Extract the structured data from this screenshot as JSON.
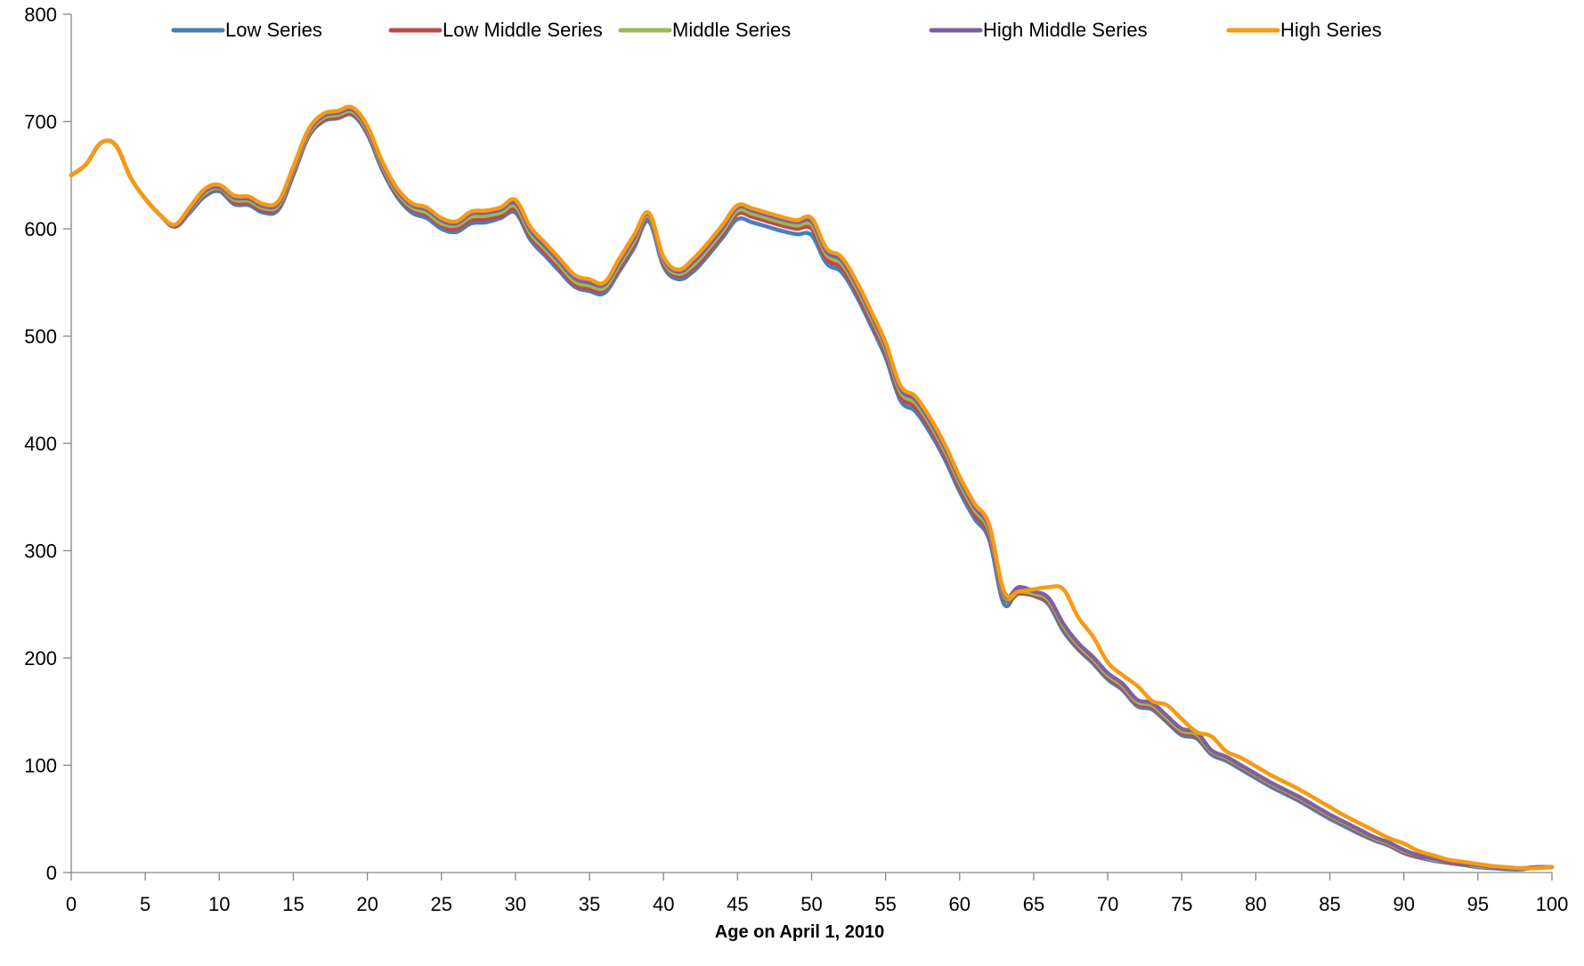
{
  "chart_data": {
    "type": "line",
    "title": "",
    "xlabel": "Age on April 1, 2010",
    "ylabel": "",
    "xlim": [
      0,
      100
    ],
    "ylim": [
      0,
      800
    ],
    "x_ticks": [
      0,
      5,
      10,
      15,
      20,
      25,
      30,
      35,
      40,
      45,
      50,
      55,
      60,
      65,
      70,
      75,
      80,
      85,
      90,
      95,
      100
    ],
    "y_ticks": [
      0,
      100,
      200,
      300,
      400,
      500,
      600,
      700,
      800
    ],
    "grid": false,
    "legend_position": "top",
    "x": [
      0,
      1,
      2,
      3,
      4,
      5,
      6,
      7,
      8,
      9,
      10,
      11,
      12,
      13,
      14,
      15,
      16,
      17,
      18,
      19,
      20,
      21,
      22,
      23,
      24,
      25,
      26,
      27,
      28,
      29,
      30,
      31,
      32,
      33,
      34,
      35,
      36,
      37,
      38,
      39,
      40,
      41,
      42,
      43,
      44,
      45,
      46,
      47,
      48,
      49,
      50,
      51,
      52,
      53,
      54,
      55,
      56,
      57,
      58,
      59,
      60,
      61,
      62,
      63,
      64,
      65,
      66,
      67,
      68,
      69,
      70,
      71,
      72,
      73,
      74,
      75,
      76,
      77,
      78,
      79,
      80,
      81,
      82,
      83,
      84,
      85,
      86,
      87,
      88,
      89,
      90,
      91,
      92,
      93,
      94,
      95,
      96,
      97,
      98,
      99,
      100
    ],
    "series": [
      {
        "name": "Low Series",
        "color": "#4a7ebb",
        "values": [
          650,
          660,
          680,
          678,
          648,
          628,
          613,
          602,
          615,
          630,
          635,
          623,
          622,
          615,
          618,
          650,
          685,
          700,
          703,
          706,
          688,
          655,
          630,
          615,
          610,
          600,
          597,
          605,
          606,
          610,
          615,
          590,
          575,
          560,
          546,
          542,
          540,
          560,
          582,
          607,
          565,
          553,
          560,
          575,
          592,
          609,
          606,
          602,
          598,
          595,
          594,
          568,
          560,
          538,
          510,
          480,
          440,
          430,
          410,
          385,
          355,
          330,
          310,
          250,
          265,
          258,
          250,
          225,
          208,
          195,
          180,
          170,
          155,
          152,
          140,
          128,
          125,
          110,
          104,
          96,
          88,
          80,
          73,
          66,
          58,
          50,
          43,
          36,
          30,
          25,
          18,
          14,
          11,
          9,
          7,
          5,
          4,
          3,
          3,
          5,
          5
        ]
      },
      {
        "name": "Low Middle Series",
        "color": "#be4b48",
        "values": [
          650,
          660,
          680,
          678,
          648,
          628,
          613,
          602,
          616,
          632,
          637,
          625,
          624,
          617,
          620,
          652,
          686,
          701,
          704,
          707,
          690,
          657,
          632,
          618,
          613,
          603,
          600,
          608,
          609,
          612,
          618,
          593,
          578,
          563,
          548,
          544,
          543,
          563,
          585,
          610,
          568,
          556,
          563,
          578,
          595,
          614,
          611,
          607,
          603,
          600,
          600,
          572,
          564,
          542,
          514,
          484,
          444,
          434,
          414,
          389,
          359,
          334,
          314,
          256,
          260,
          258,
          252,
          228,
          210,
          197,
          182,
          172,
          157,
          154,
          142,
          130,
          127,
          112,
          106,
          98,
          90,
          82,
          75,
          68,
          60,
          52,
          45,
          38,
          31,
          26,
          19,
          15,
          12,
          9,
          8,
          6,
          5,
          4,
          4,
          5,
          5
        ]
      },
      {
        "name": "Middle Series",
        "color": "#98b954",
        "values": [
          650,
          660,
          680,
          678,
          648,
          628,
          613,
          603,
          617,
          633,
          638,
          627,
          626,
          619,
          622,
          654,
          688,
          703,
          706,
          709,
          692,
          659,
          634,
          620,
          615,
          605,
          603,
          611,
          612,
          615,
          621,
          596,
          581,
          566,
          551,
          547,
          545,
          566,
          588,
          612,
          570,
          558,
          566,
          581,
          598,
          617,
          614,
          610,
          606,
          603,
          604,
          576,
          568,
          546,
          518,
          488,
          448,
          438,
          418,
          393,
          363,
          338,
          318,
          258,
          262,
          260,
          254,
          230,
          212,
          199,
          184,
          174,
          159,
          156,
          144,
          132,
          129,
          113,
          107,
          99,
          91,
          83,
          76,
          69,
          61,
          53,
          46,
          39,
          32,
          27,
          20,
          16,
          12,
          10,
          8,
          6,
          5,
          4,
          4,
          5,
          5
        ]
      },
      {
        "name": "High Middle Series",
        "color": "#7d60a0",
        "values": [
          650,
          660,
          680,
          678,
          648,
          628,
          613,
          603,
          618,
          635,
          639,
          629,
          628,
          621,
          624,
          656,
          690,
          705,
          708,
          711,
          694,
          661,
          636,
          622,
          618,
          608,
          605,
          614,
          615,
          618,
          624,
          599,
          584,
          569,
          554,
          550,
          548,
          569,
          591,
          614,
          572,
          560,
          569,
          584,
          601,
          620,
          617,
          613,
          609,
          606,
          607,
          579,
          571,
          549,
          521,
          491,
          451,
          441,
          421,
          396,
          366,
          341,
          321,
          260,
          266,
          262,
          256,
          232,
          214,
          201,
          186,
          176,
          161,
          158,
          146,
          134,
          131,
          114,
          108,
          100,
          92,
          84,
          77,
          70,
          62,
          54,
          47,
          40,
          33,
          28,
          21,
          16,
          13,
          10,
          8,
          7,
          5,
          4,
          4,
          5,
          5
        ]
      },
      {
        "name": "High Series",
        "color": "#f79a14",
        "values": [
          650,
          660,
          680,
          678,
          648,
          628,
          613,
          604,
          620,
          637,
          641,
          631,
          630,
          623,
          626,
          658,
          692,
          707,
          710,
          713,
          696,
          663,
          638,
          624,
          620,
          610,
          607,
          616,
          617,
          620,
          627,
          602,
          587,
          572,
          557,
          553,
          550,
          572,
          594,
          615,
          574,
          562,
          572,
          587,
          604,
          622,
          619,
          615,
          611,
          608,
          610,
          582,
          574,
          552,
          524,
          494,
          454,
          444,
          424,
          399,
          369,
          344,
          324,
          262,
          262,
          264,
          266,
          264,
          238,
          220,
          196,
          184,
          174,
          160,
          156,
          143,
          131,
          127,
          113,
          107,
          99,
          91,
          84,
          77,
          69,
          61,
          53,
          46,
          39,
          32,
          27,
          20,
          16,
          12,
          10,
          8,
          6,
          5,
          4,
          4,
          5
        ]
      }
    ]
  }
}
